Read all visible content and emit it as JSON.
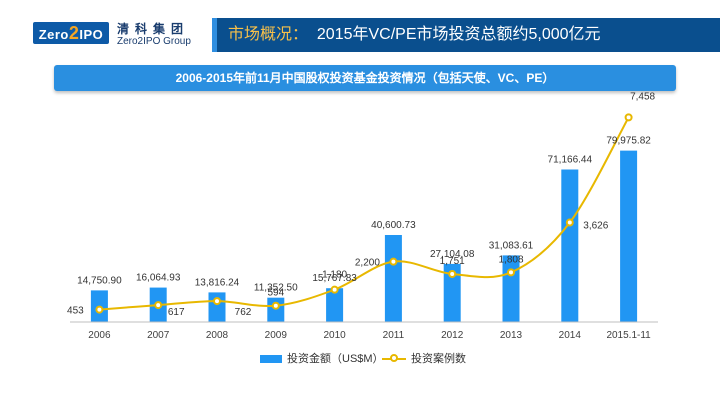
{
  "header": {
    "logo_text_a": "Zero",
    "logo_text_b": "2",
    "logo_text_c": "IPO",
    "logo_cn": "清科集团",
    "logo_en": "Zero2IPO Group",
    "title_prefix": "市场概况：",
    "title": "2015年VC/PE市场投资总额约5,000亿元"
  },
  "colors": {
    "bar": "#2196f3",
    "line": "#e8b800",
    "title_bar": "#0a4f8e",
    "banner": "#2a8fe0"
  },
  "chart_data": {
    "type": "bar+line",
    "title": "2006-2015年前11月中国股权投资基金投资情况（包括天使、VC、PE）",
    "categories": [
      "2006",
      "2007",
      "2008",
      "2009",
      "2010",
      "2011",
      "2012",
      "2013",
      "2014",
      "2015.1-11"
    ],
    "series": [
      {
        "name": "投资金额（US$M）",
        "type": "bar",
        "values": [
          14750.9,
          16064.93,
          13816.24,
          11352.5,
          15767.83,
          40600.73,
          27104.08,
          31083.61,
          71166.44,
          79975.82
        ],
        "labels": [
          "14,750.90",
          "16,064.93",
          "13,816.24",
          "11,352.50",
          "15,767.83",
          "40,600.73",
          "27,104.08",
          "31,083.61",
          "71,166.44",
          "79,975.82"
        ]
      },
      {
        "name": "投资案例数",
        "type": "line",
        "values": [
          453,
          617,
          762,
          594,
          1180,
          2200,
          1751,
          1808,
          3626,
          7458
        ],
        "labels": [
          "453",
          "617",
          "762",
          "594",
          "1,180",
          "2,200",
          "1,751",
          "1,808",
          "3,626",
          "7,458"
        ]
      }
    ]
  }
}
